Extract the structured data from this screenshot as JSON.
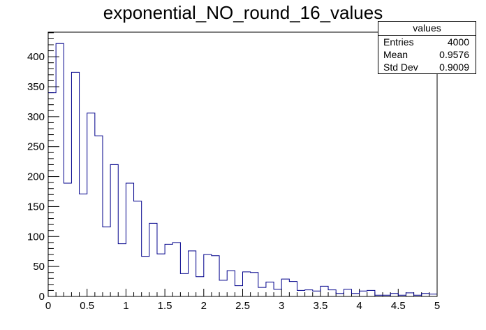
{
  "chart_data": {
    "type": "bar",
    "style": "step-histogram",
    "title": "exponential_NO_round_16_values",
    "xlim": [
      0,
      5
    ],
    "ylim": [
      0,
      441
    ],
    "x_ticks": [
      "0",
      "0.5",
      "1",
      "1.5",
      "2",
      "2.5",
      "3",
      "3.5",
      "4",
      "4.5",
      "5"
    ],
    "y_ticks": [
      "0",
      "50",
      "100",
      "150",
      "200",
      "250",
      "300",
      "350",
      "400"
    ],
    "bin_width": 0.1,
    "line_color": "#00008b",
    "values": [
      340,
      422,
      189,
      374,
      171,
      306,
      268,
      116,
      220,
      88,
      189,
      159,
      67,
      122,
      71,
      87,
      90,
      38,
      76,
      33,
      70,
      68,
      27,
      43,
      18,
      41,
      40,
      15,
      24,
      12,
      29,
      25,
      10,
      11,
      9,
      17,
      11,
      5,
      12,
      5,
      9,
      10,
      2,
      2,
      5,
      2,
      6,
      2,
      5,
      4
    ]
  },
  "stats_box": {
    "name": "values",
    "rows": [
      {
        "label": "Entries",
        "value": "4000"
      },
      {
        "label": "Mean",
        "value": "0.9576"
      },
      {
        "label": "Std Dev",
        "value": "0.9009"
      }
    ]
  }
}
